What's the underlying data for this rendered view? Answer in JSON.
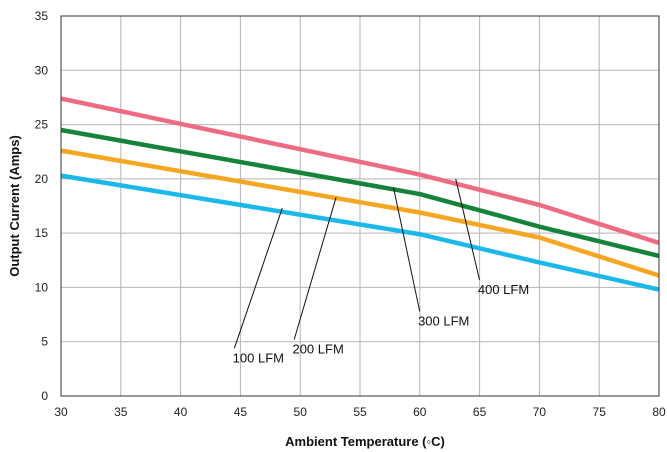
{
  "chart_data": {
    "type": "line",
    "title": "",
    "xlabel": "Ambient Temperature (◦C)",
    "ylabel": "Output Current (Amps)",
    "xlim": [
      30,
      80
    ],
    "ylim": [
      0,
      35
    ],
    "xticks": [
      30,
      35,
      40,
      45,
      50,
      55,
      60,
      65,
      70,
      75,
      80
    ],
    "yticks": [
      0,
      5,
      10,
      15,
      20,
      25,
      30,
      35
    ],
    "grid": true,
    "legend": "none",
    "series": [
      {
        "name": "400 LFM",
        "color": "#ee6b85",
        "x": [
          30,
          60,
          70,
          80
        ],
        "y": [
          27.4,
          20.4,
          17.6,
          14.1
        ]
      },
      {
        "name": "300 LFM",
        "color": "#15843a",
        "x": [
          30,
          60,
          70,
          80
        ],
        "y": [
          24.5,
          18.6,
          15.6,
          12.9
        ]
      },
      {
        "name": "200 LFM",
        "color": "#f5a623",
        "x": [
          30,
          60,
          70,
          80
        ],
        "y": [
          22.6,
          16.9,
          14.6,
          11.1
        ]
      },
      {
        "name": "100 LFM",
        "color": "#1cb8ea",
        "x": [
          30,
          60,
          70,
          80
        ],
        "y": [
          20.3,
          14.9,
          12.3,
          9.8
        ]
      }
    ],
    "annotations": [
      {
        "text": "400 LFM",
        "label_x": 67,
        "label_y": 9.4,
        "point_x": 63.0,
        "point_y": 20.0
      },
      {
        "text": "300 LFM",
        "label_x": 62,
        "label_y": 6.5,
        "point_x": 57.8,
        "point_y": 19.2
      },
      {
        "text": "200 LFM",
        "label_x": 51.5,
        "label_y": 3.9,
        "point_x": 53.0,
        "point_y": 18.3
      },
      {
        "text": "100 LFM",
        "label_x": 46.5,
        "label_y": 3.1,
        "point_x": 48.5,
        "point_y": 17.3
      }
    ]
  }
}
